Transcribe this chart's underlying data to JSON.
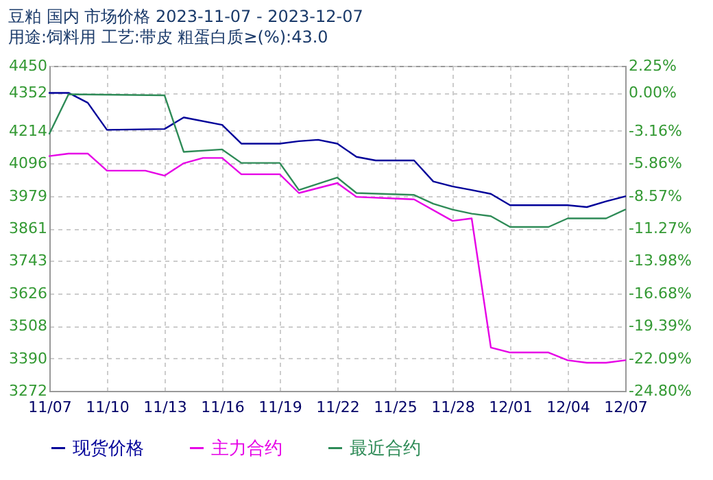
{
  "chart_data": {
    "type": "line",
    "title": "豆粕 国内 市场价格 2023-11-07 - 2023-12-07",
    "subtitle": "用途:饲料用 工艺:带皮 粗蛋白质≥(%):43.0",
    "series": [
      {
        "name": "现货价格",
        "color": "#000099",
        "x": [
          "2023-11-07",
          "2023-11-08",
          "2023-11-09",
          "2023-11-10",
          "2023-11-13",
          "2023-11-14",
          "2023-11-16",
          "2023-11-17",
          "2023-11-19",
          "2023-11-20",
          "2023-11-21",
          "2023-11-22",
          "2023-11-23",
          "2023-11-24",
          "2023-11-26",
          "2023-11-27",
          "2023-11-28",
          "2023-11-29",
          "2023-11-30",
          "2023-12-01",
          "2023-12-04",
          "2023-12-05",
          "2023-12-06",
          "2023-12-07"
        ],
        "values": [
          4352,
          4352,
          4316,
          4218,
          4221,
          4263,
          4236,
          4168,
          4168,
          4177,
          4182,
          4168,
          4120,
          4107,
          4107,
          4031,
          4013,
          4000,
          3986,
          3945,
          3945,
          3938,
          3959,
          3977
        ]
      },
      {
        "name": "主力合约",
        "color": "#e600e6",
        "x": [
          "2023-11-07",
          "2023-11-08",
          "2023-11-09",
          "2023-11-10",
          "2023-11-12",
          "2023-11-13",
          "2023-11-14",
          "2023-11-15",
          "2023-11-16",
          "2023-11-17",
          "2023-11-19",
          "2023-11-20",
          "2023-11-22",
          "2023-11-23",
          "2023-11-26",
          "2023-11-28",
          "2023-11-29",
          "2023-11-30",
          "2023-12-01",
          "2023-12-03",
          "2023-12-04",
          "2023-12-05",
          "2023-12-06",
          "2023-12-07"
        ],
        "values": [
          4123,
          4132,
          4132,
          4070,
          4070,
          4052,
          4097,
          4116,
          4116,
          4057,
          4057,
          3989,
          4025,
          3975,
          3966,
          3888,
          3897,
          3429,
          3411,
          3411,
          3383,
          3374,
          3374,
          3383
        ]
      },
      {
        "name": "最近合约",
        "color": "#2e8b57",
        "x": [
          "2023-11-07",
          "2023-11-08",
          "2023-11-13",
          "2023-11-14",
          "2023-11-16",
          "2023-11-17",
          "2023-11-19",
          "2023-11-20",
          "2023-11-22",
          "2023-11-23",
          "2023-11-26",
          "2023-11-27",
          "2023-11-28",
          "2023-11-29",
          "2023-11-30",
          "2023-12-01",
          "2023-12-03",
          "2023-12-04",
          "2023-12-06",
          "2023-12-07"
        ],
        "values": [
          4204,
          4347,
          4343,
          4138,
          4147,
          4098,
          4098,
          4000,
          4045,
          3989,
          3982,
          3950,
          3929,
          3914,
          3905,
          3866,
          3866,
          3897,
          3897,
          3929
        ]
      }
    ],
    "xlim": [
      "2023-11-07",
      "2023-12-07"
    ],
    "xticks": [
      {
        "value": "2023-11-07",
        "label": "11/07"
      },
      {
        "value": "2023-11-10",
        "label": "11/10"
      },
      {
        "value": "2023-11-13",
        "label": "11/13"
      },
      {
        "value": "2023-11-16",
        "label": "11/16"
      },
      {
        "value": "2023-11-19",
        "label": "11/19"
      },
      {
        "value": "2023-11-22",
        "label": "11/22"
      },
      {
        "value": "2023-11-25",
        "label": "11/25"
      },
      {
        "value": "2023-11-28",
        "label": "11/28"
      },
      {
        "value": "2023-12-01",
        "label": "12/01"
      },
      {
        "value": "2023-12-04",
        "label": "12/04"
      },
      {
        "value": "2023-12-07",
        "label": "12/07"
      }
    ],
    "ylim": [
      3272,
      4450
    ],
    "yticks": [
      3272,
      3390,
      3508,
      3626,
      3743,
      3861,
      3979,
      4096,
      4214,
      4352,
      4450
    ],
    "y2lim": [
      -24.8,
      2.25
    ],
    "y2ticks": [
      {
        "value": -24.8,
        "label": "-24.80%"
      },
      {
        "value": -22.09,
        "label": "-22.09%"
      },
      {
        "value": -19.39,
        "label": "-19.39%"
      },
      {
        "value": -16.68,
        "label": "-16.68%"
      },
      {
        "value": -13.98,
        "label": "-13.98%"
      },
      {
        "value": -11.27,
        "label": "-11.27%"
      },
      {
        "value": -8.57,
        "label": "-8.57%"
      },
      {
        "value": -5.86,
        "label": "-5.86%"
      },
      {
        "value": -3.16,
        "label": "-3.16%"
      },
      {
        "value": 0,
        "label": "0.00%"
      },
      {
        "value": 2.25,
        "label": "2.25%"
      }
    ],
    "grid": true,
    "legend": "bottom"
  }
}
